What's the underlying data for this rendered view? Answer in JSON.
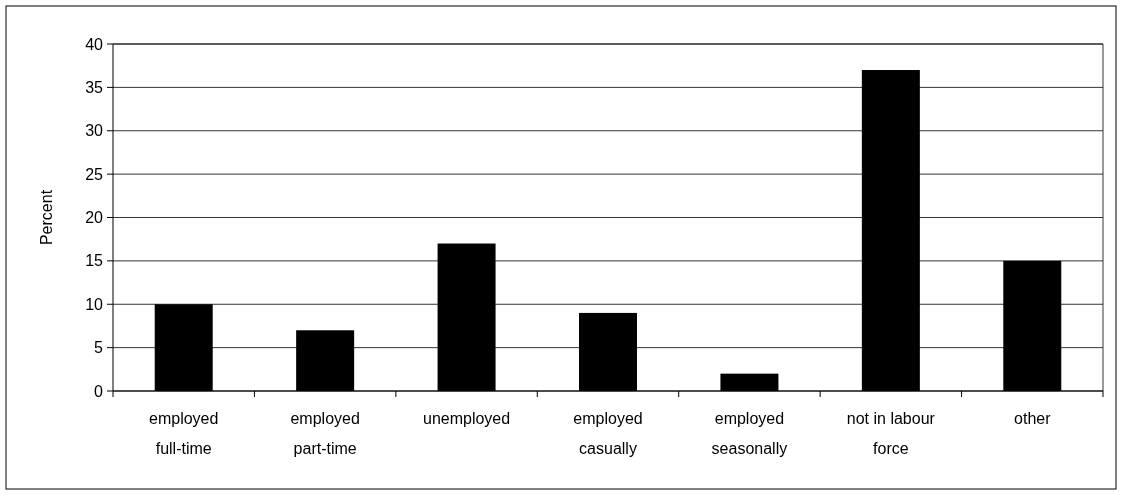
{
  "chart_data": {
    "type": "bar",
    "categories": [
      "employed full-time",
      "employed part-time",
      "unemployed",
      "employed casually",
      "employed seasonally",
      "not in labour force",
      "other"
    ],
    "values": [
      10,
      7,
      17,
      9,
      2,
      37,
      15
    ],
    "color": "#000000",
    "ylabel": "Percent",
    "ylim": [
      0,
      40
    ],
    "yticks": [
      0,
      5,
      10,
      15,
      20,
      25,
      30,
      35,
      40
    ],
    "grid": "y"
  }
}
